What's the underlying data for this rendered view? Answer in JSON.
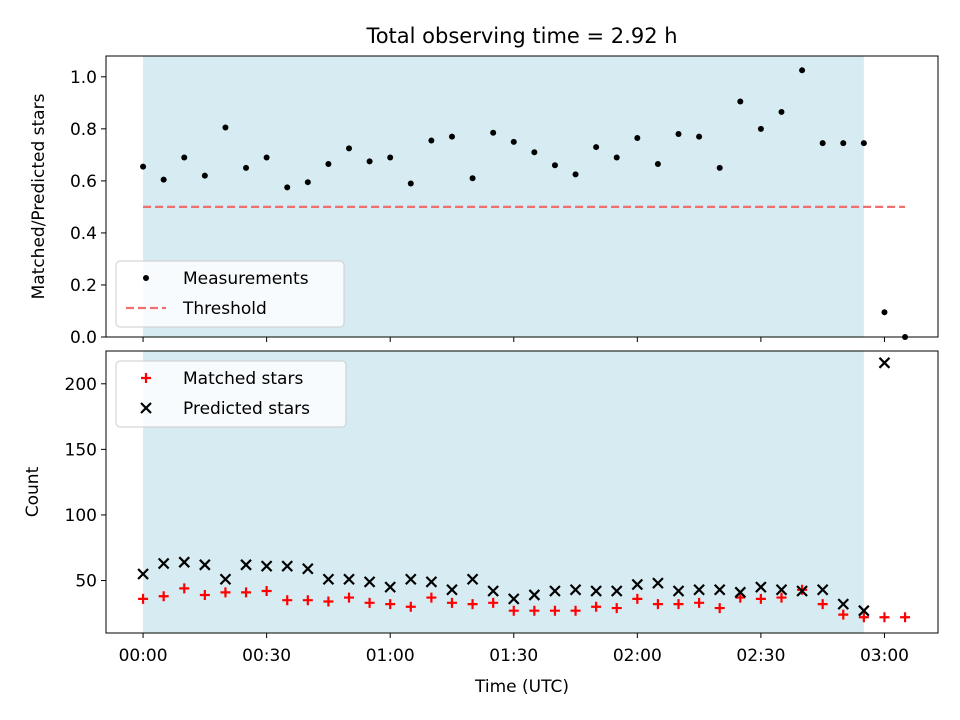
{
  "chart_data": [
    {
      "type": "scatter",
      "title": "Total observing time = 2.92 h",
      "ylabel": "Matched/Predicted stars",
      "xlim_minutes": [
        -9,
        193
      ],
      "ylim": [
        0,
        1.08
      ],
      "yticks": [
        0.0,
        0.2,
        0.4,
        0.6,
        0.8,
        1.0
      ],
      "ytick_labels": [
        "0.0",
        "0.2",
        "0.4",
        "0.6",
        "0.8",
        "1.0"
      ],
      "observing_window_minutes": [
        0,
        175
      ],
      "legend": {
        "placement": "lower left",
        "entries": [
          "Measurements",
          "Threshold"
        ]
      },
      "series": [
        {
          "name": "Measurements",
          "color": "#000000",
          "marker": "dot",
          "x": [
            0,
            5,
            10,
            15,
            20,
            25,
            30,
            35,
            40,
            45,
            50,
            55,
            60,
            65,
            70,
            75,
            80,
            85,
            90,
            95,
            100,
            105,
            110,
            115,
            120,
            125,
            130,
            135,
            140,
            145,
            150,
            155,
            160,
            165,
            170,
            175,
            180,
            185
          ],
          "y": [
            0.655,
            0.605,
            0.69,
            0.62,
            0.805,
            0.65,
            0.69,
            0.575,
            0.595,
            0.665,
            0.725,
            0.675,
            0.69,
            0.59,
            0.755,
            0.77,
            0.61,
            0.785,
            0.75,
            0.71,
            0.66,
            0.625,
            0.73,
            0.69,
            0.765,
            0.665,
            0.78,
            0.77,
            0.65,
            0.905,
            0.8,
            0.865,
            1.025,
            0.745,
            0.745,
            0.745,
            0.095,
            0.0
          ]
        },
        {
          "name": "Threshold",
          "color": "#f07070",
          "line": "dashed",
          "x": [
            0,
            185
          ],
          "y": [
            0.5,
            0.5
          ]
        }
      ]
    },
    {
      "type": "scatter",
      "ylabel": "Count",
      "xlabel": "Time (UTC)",
      "xlim_minutes": [
        -9,
        193
      ],
      "ylim": [
        10,
        225
      ],
      "yticks": [
        50,
        100,
        150,
        200
      ],
      "ytick_labels": [
        "50",
        "100",
        "150",
        "200"
      ],
      "xticks_minutes": [
        0,
        30,
        60,
        90,
        120,
        150,
        180
      ],
      "xtick_labels": [
        "00:00",
        "00:30",
        "01:00",
        "01:30",
        "02:00",
        "02:30",
        "03:00"
      ],
      "observing_window_minutes": [
        0,
        175
      ],
      "legend": {
        "placement": "upper left",
        "entries": [
          "Matched stars",
          "Predicted stars"
        ]
      },
      "series": [
        {
          "name": "Matched stars",
          "color": "#ff0000",
          "marker": "plus",
          "x": [
            0,
            5,
            10,
            15,
            20,
            25,
            30,
            35,
            40,
            45,
            50,
            55,
            60,
            65,
            70,
            75,
            80,
            85,
            90,
            95,
            100,
            105,
            110,
            115,
            120,
            125,
            130,
            135,
            140,
            145,
            150,
            155,
            160,
            165,
            170,
            175,
            180,
            185
          ],
          "y": [
            36,
            38,
            44,
            39,
            41,
            41,
            42,
            35,
            35,
            34,
            37,
            33,
            32,
            30,
            37,
            33,
            32,
            33,
            27,
            27,
            27,
            27,
            30,
            29,
            36,
            32,
            32,
            33,
            29,
            37,
            36,
            37,
            43,
            32,
            24,
            22,
            22,
            22
          ]
        },
        {
          "name": "Predicted stars",
          "color": "#000000",
          "marker": "x",
          "x": [
            0,
            5,
            10,
            15,
            20,
            25,
            30,
            35,
            40,
            45,
            50,
            55,
            60,
            65,
            70,
            75,
            80,
            85,
            90,
            95,
            100,
            105,
            110,
            115,
            120,
            125,
            130,
            135,
            140,
            145,
            150,
            155,
            160,
            165,
            170,
            175,
            180
          ],
          "y": [
            55,
            63,
            64,
            62,
            51,
            62,
            61,
            61,
            59,
            51,
            51,
            49,
            45,
            51,
            49,
            43,
            51,
            42,
            36,
            39,
            42,
            43,
            42,
            42,
            47,
            48,
            42,
            43,
            43,
            41,
            45,
            43,
            42,
            43,
            32,
            27,
            216
          ]
        }
      ]
    }
  ]
}
